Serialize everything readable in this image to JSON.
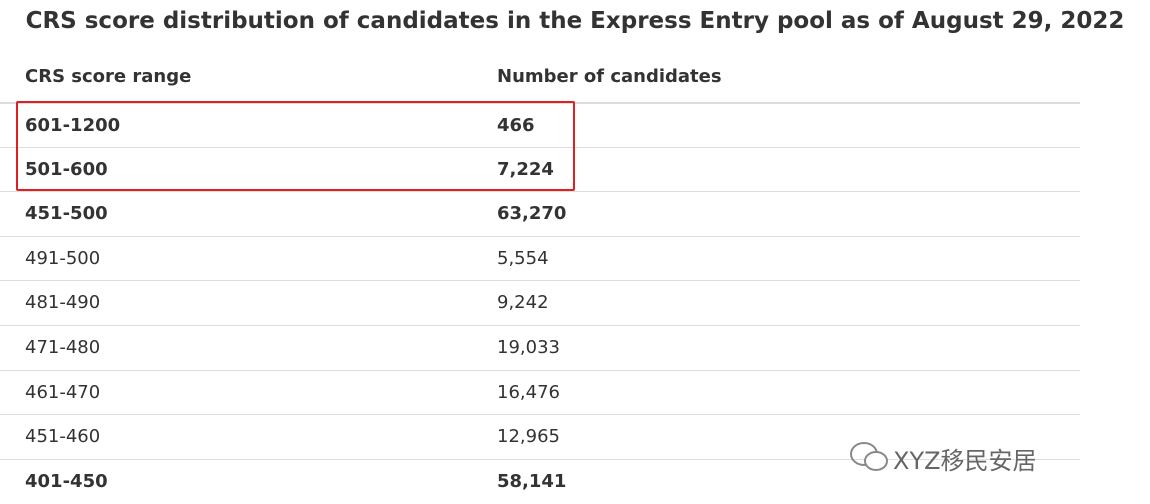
{
  "header": {
    "title": "CRS score distribution of candidates in the Express Entry pool as of August 29, 2022"
  },
  "table": {
    "columns": [
      "CRS score range",
      "Number of candidates"
    ],
    "rows": [
      {
        "cells": [
          "601-1200",
          "466"
        ],
        "bold": true
      },
      {
        "cells": [
          "501-600",
          "7,224"
        ],
        "bold": true
      },
      {
        "cells": [
          "451-500",
          "63,270"
        ],
        "bold": true
      },
      {
        "cells": [
          "491-500",
          "5,554"
        ],
        "bold": false
      },
      {
        "cells": [
          "481-490",
          "9,242"
        ],
        "bold": false
      },
      {
        "cells": [
          "471-480",
          "19,033"
        ],
        "bold": false
      },
      {
        "cells": [
          "461-470",
          "16,476"
        ],
        "bold": false
      },
      {
        "cells": [
          "451-460",
          "12,965"
        ],
        "bold": false
      },
      {
        "cells": [
          "401-450",
          "58,141"
        ],
        "bold": true
      }
    ]
  },
  "watermark": "XYZ移民安居"
}
